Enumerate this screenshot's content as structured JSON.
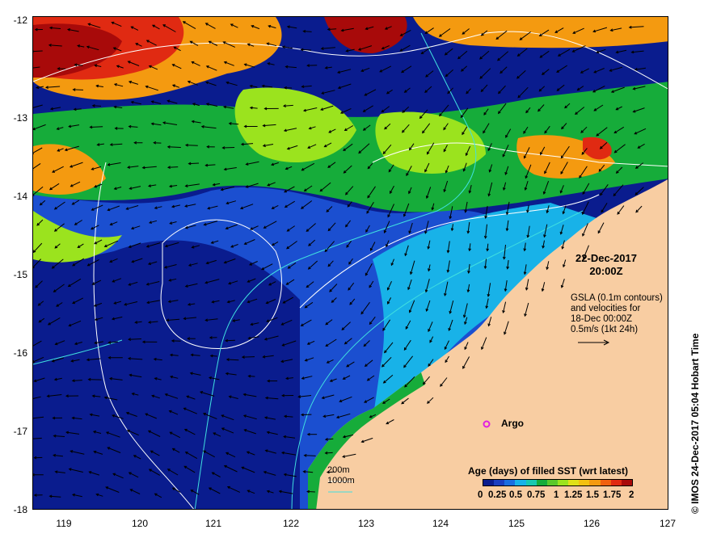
{
  "map": {
    "y_ticks": [
      "-12",
      "-13",
      "-14",
      "-15",
      "-16",
      "-17",
      "-18"
    ],
    "x_ticks": [
      "119",
      "120",
      "121",
      "122",
      "123",
      "124",
      "125",
      "126",
      "127"
    ],
    "date_line1": "22-Dec-2017",
    "date_line2": "20:00Z",
    "gsla_lines": [
      "GSLA (0.1m contours)",
      "and velocities for",
      "18-Dec 00:00Z",
      "0.5m/s (1kt 24h)"
    ],
    "argo_label": "Argo",
    "contour_200": "200m",
    "contour_1000": "1000m",
    "legend_title": "Age (days) of filled SST (wrt latest)",
    "legend_ticks": [
      "0",
      "0.25",
      "0.5",
      "0.75",
      "1",
      "1.25",
      "1.5",
      "1.75",
      "2"
    ],
    "credit": "© IMOS 24-Dec-2017 05:04 Hobart Time",
    "colors": {
      "land": "#f8cda2",
      "deep_blue": "#0a1c8e",
      "ocean_blue": "#1b4fd0",
      "light_blue": "#18b2e8",
      "green": "#16ac3a",
      "lime": "#9be31e",
      "orange": "#f49a10",
      "red": "#e02a12",
      "dark_red": "#a80a0a",
      "argo": "#e020e0",
      "contour_cyan": "#40e0e0"
    },
    "colorbar": [
      "#0a1c8e",
      "#1b3ec0",
      "#1b6ee0",
      "#18b2e8",
      "#18c8b0",
      "#16ac3a",
      "#5ac82a",
      "#9be31e",
      "#e0e018",
      "#f4c010",
      "#f49a10",
      "#f06010",
      "#e02a12",
      "#a80a0a"
    ]
  }
}
